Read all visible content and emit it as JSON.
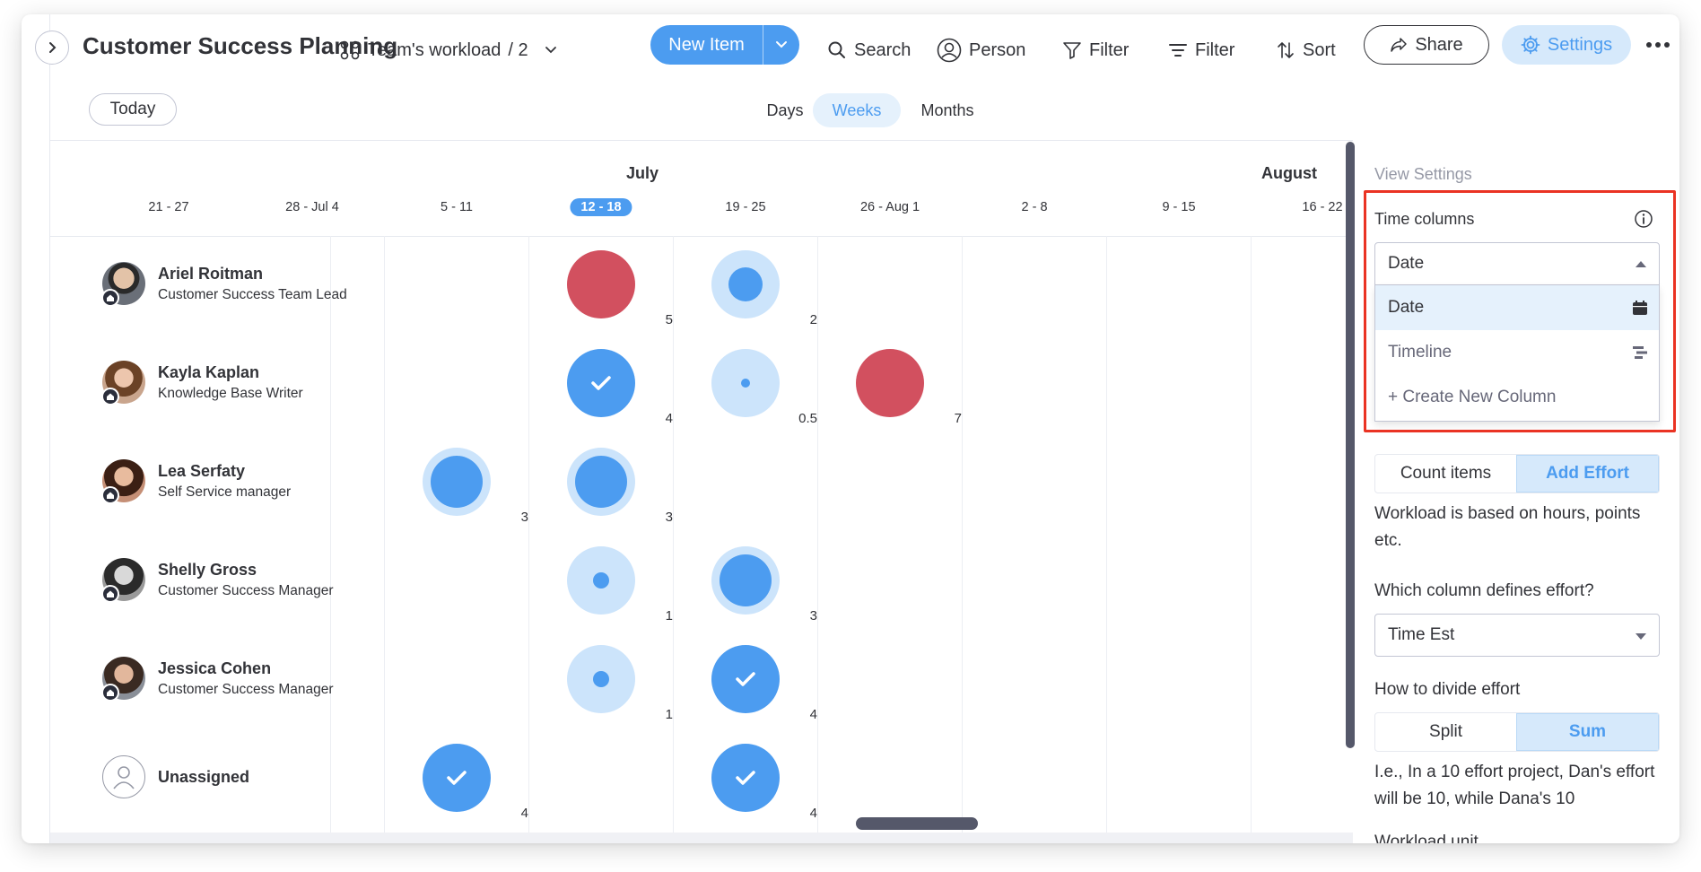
{
  "header": {
    "title": "Customer Success Planning",
    "view_name": "Team's workload",
    "view_count": "/ 2",
    "new_item": "New Item",
    "search": "Search",
    "person": "Person",
    "filter1": "Filter",
    "filter2": "Filter",
    "sort": "Sort",
    "share": "Share",
    "settings": "Settings"
  },
  "subbar": {
    "today": "Today",
    "scales": [
      "Days",
      "Weeks",
      "Months"
    ],
    "active_scale": "Weeks"
  },
  "timeline": {
    "months": [
      "July",
      "August"
    ],
    "weeks": [
      "21 - 27",
      "28 - Jul 4",
      "5 - 11",
      "12 - 18",
      "19 - 25",
      "26 - Aug 1",
      "2 - 8",
      "9 - 15",
      "16 - 22"
    ],
    "current_week": "12 - 18"
  },
  "people": [
    {
      "name": "Ariel Roitman",
      "role": "Customer Success Team Lead"
    },
    {
      "name": "Kayla Kaplan",
      "role": "Knowledge Base Writer"
    },
    {
      "name": "Lea Serfaty",
      "role": "Self Service manager"
    },
    {
      "name": "Shelly Gross",
      "role": "Customer Success Manager"
    },
    {
      "name": "Jessica Cohen",
      "role": "Customer Success Manager"
    },
    {
      "name": "Unassigned",
      "role": ""
    }
  ],
  "workload": [
    {
      "person": "Ariel Roitman",
      "week": "12 - 18",
      "value": "5",
      "state": "overloaded"
    },
    {
      "person": "Ariel Roitman",
      "week": "19 - 25",
      "value": "2",
      "state": "partial"
    },
    {
      "person": "Kayla Kaplan",
      "week": "12 - 18",
      "value": "4",
      "state": "done"
    },
    {
      "person": "Kayla Kaplan",
      "week": "19 - 25",
      "value": "0.5",
      "state": "partial"
    },
    {
      "person": "Kayla Kaplan",
      "week": "26 - Aug 1",
      "value": "7",
      "state": "overloaded"
    },
    {
      "person": "Lea Serfaty",
      "week": "5 - 11",
      "value": "3",
      "state": "partial"
    },
    {
      "person": "Lea Serfaty",
      "week": "12 - 18",
      "value": "3",
      "state": "partial"
    },
    {
      "person": "Shelly Gross",
      "week": "12 - 18",
      "value": "1",
      "state": "partial"
    },
    {
      "person": "Shelly Gross",
      "week": "19 - 25",
      "value": "3",
      "state": "partial"
    },
    {
      "person": "Jessica Cohen",
      "week": "12 - 18",
      "value": "1",
      "state": "partial"
    },
    {
      "person": "Jessica Cohen",
      "week": "19 - 25",
      "value": "4",
      "state": "done"
    },
    {
      "person": "Unassigned",
      "week": "5 - 11",
      "value": "4",
      "state": "done"
    },
    {
      "person": "Unassigned",
      "week": "19 - 25",
      "value": "4",
      "state": "done"
    }
  ],
  "settings_panel": {
    "heading": "View Settings",
    "time_columns_label": "Time columns",
    "time_columns_value": "Date",
    "options": [
      "Date",
      "Timeline",
      "+ Create New Column"
    ],
    "count_items": "Count items",
    "add_effort": "Add Effort",
    "effort_desc": "Workload is based on hours, points etc.",
    "effort_column_label": "Which column defines effort?",
    "effort_column_value": "Time Est",
    "divide_label": "How to divide effort",
    "split": "Split",
    "sum": "Sum",
    "example": "I.e., In a 10 effort project, Dan's effort will be 10, while Dana's 10",
    "next_label": "Workload unit"
  },
  "colors": {
    "accent": "#4c9cf0",
    "accent_light": "#cce4fb",
    "overloaded": "#d2505f",
    "highlight_border": "#ea3323"
  }
}
